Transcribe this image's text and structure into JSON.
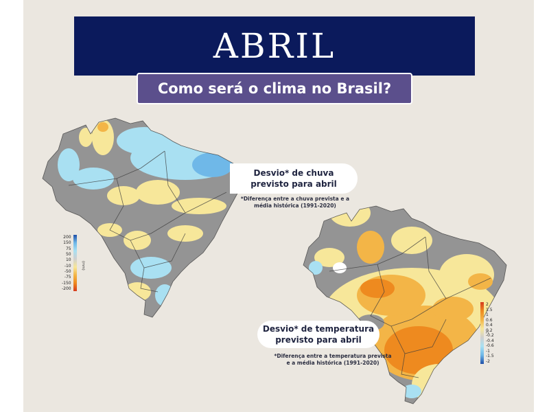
{
  "header": {
    "title": "ABRIL",
    "subtitle": "Como será o clima no Brasil?"
  },
  "rain_map": {
    "label_line1": "Desvio* de chuva",
    "label_line2": "previsto para abril",
    "note_line1": "*Diferença entre a chuva prevista e a",
    "note_line2": "média histórica (1991-2020)",
    "legend_values": [
      "200",
      "150",
      "75",
      "50",
      "10",
      "-10",
      "-50",
      "-75",
      "-150",
      "-200"
    ],
    "legend_unit": "(mm)"
  },
  "temp_map": {
    "label_line1": "Desvio* de temperatura",
    "label_line2": "previsto para abril",
    "note_line1": "*Diferença entre a temperatura prevista",
    "note_line2": "e a média histórica (1991-2020)",
    "legend_values": [
      "2",
      "1.5",
      "1",
      "0.6",
      "0.4",
      "0.2",
      "-0.2",
      "-0.4",
      "-0.6",
      "-1",
      "-1.5",
      "-2"
    ],
    "legend_unit": "°C"
  },
  "colors": {
    "title_bg": "#0b1a5c",
    "subtitle_bg": "#5b4f8c",
    "neutral": "#949494",
    "wet_light": "#a9e0f2",
    "wet_dark": "#6fb8e8",
    "dry_light": "#f7e79a",
    "warm_mid": "#f3b547",
    "warm_strong": "#ee8a1f"
  }
}
